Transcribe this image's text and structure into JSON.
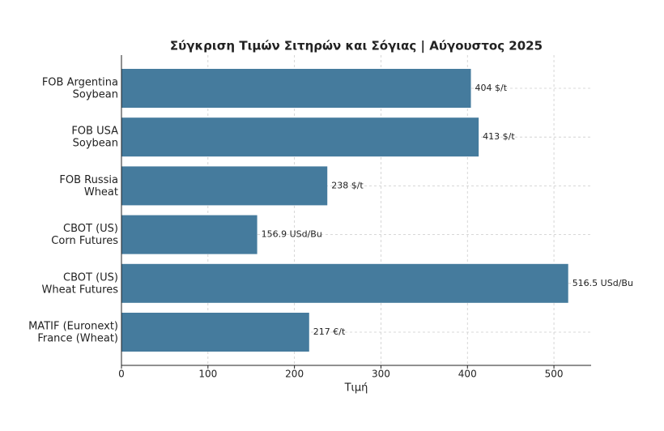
{
  "chart_data": {
    "type": "barh",
    "title": "Σύγκριση Τιμών Σιτηρών και Σόγιας | Αύγουστος 2025",
    "xlabel": "Τιμή",
    "categories": [
      [
        "FOB Argentina",
        "Soybean"
      ],
      [
        "FOB USA",
        "Soybean"
      ],
      [
        "FOB Russia",
        "Wheat"
      ],
      [
        "CBOT (US)",
        "Corn Futures"
      ],
      [
        "CBOT (US)",
        "Wheat Futures"
      ],
      [
        "MATIF (Euronext)",
        "France (Wheat)"
      ]
    ],
    "values": [
      404,
      413,
      238,
      156.9,
      516.5,
      217
    ],
    "value_labels": [
      "404 $/t",
      "413 $/t",
      "238 $/t",
      "156.9 USd/Bu",
      "516.5 USd/Bu",
      "217 €/t"
    ],
    "color": "#457b9d",
    "xlim": [
      0,
      543
    ],
    "xticks": [
      0,
      100,
      200,
      300,
      400,
      500
    ],
    "grid": true
  }
}
